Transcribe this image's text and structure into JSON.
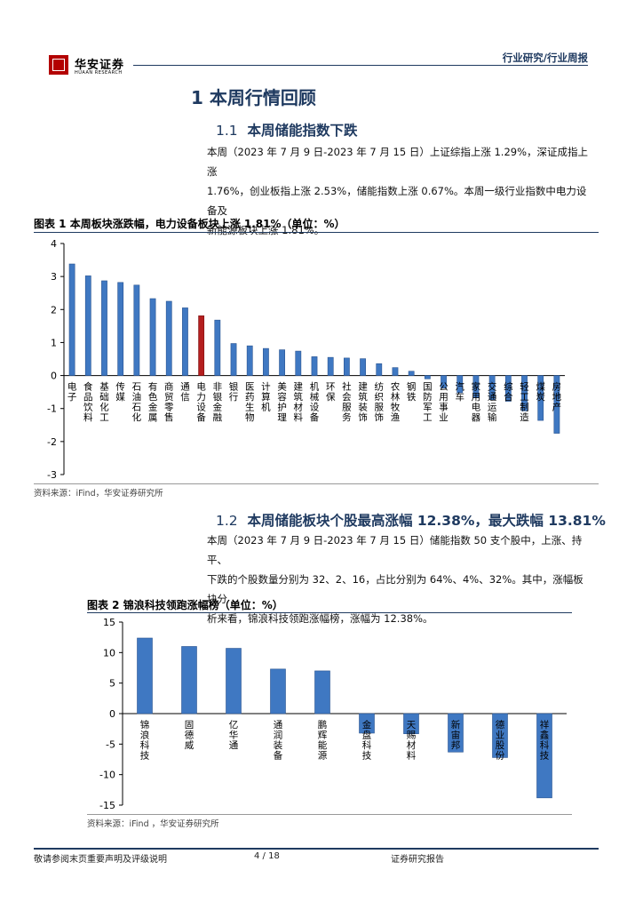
{
  "header": {
    "brand_cn": "华安证券",
    "brand_en": "HUAAN RESEARCH",
    "tag": "行业研究/行业周报"
  },
  "section1": {
    "heading": "1 本周行情回顾",
    "sub1": {
      "number": "1.1",
      "title": "本周储能指数下跌",
      "lines": [
        "本周（2023 年 7 月 9 日-2023 年 7 月 15 日）上证综指上涨 1.29%，深证成指上涨",
        "1.76%，创业板指上涨 2.53%，储能指数上涨 0.67%。本周一级行业指数中电力设备及",
        "新能源板块上涨 1.81%。"
      ]
    },
    "sub2": {
      "number": "1.2",
      "title": "本周储能板块个股最高涨幅 12.38%，最大跌幅 13.81%",
      "lines": [
        "本周（2023 年 7 月 9 日-2023 年 7 月 15 日）储能指数 50 支个股中，上涨、持平、",
        "下跌的个股数量分别为 32、2、16，占比分别为 64%、4%、32%。其中，涨幅板块分",
        "析来看，锦浪科技领跑涨幅榜，涨幅为 12.38%。"
      ]
    }
  },
  "figure1": {
    "title": "图表 1 本周板块涨跌幅，电力设备板块上涨 1.81%（单位：%）",
    "source": "资料来源：iFind，华安证券研究所"
  },
  "figure2": {
    "title": "图表 2 锦浪科技领跑涨幅榜（单位：%）",
    "source": "资料来源：iFind ，华安证券研究所"
  },
  "colors": {
    "bar": "#3f78c2",
    "highlight": "#b41e1e",
    "heading": "#1f3a60"
  },
  "chart_data": [
    {
      "type": "bar",
      "title": "",
      "ylim": [
        -3,
        4
      ],
      "yticks": [
        -3,
        -2,
        -1,
        0,
        1,
        2,
        3,
        4
      ],
      "highlight_category": "电力设备",
      "categories": [
        "电子",
        "食品饮料",
        "基础化工",
        "传媒",
        "石油石化",
        "有色金属",
        "商贸零售",
        "通信",
        "电力设备",
        "非银金融",
        "银行",
        "医药生物",
        "计算机",
        "美容护理",
        "建筑材料",
        "机械设备",
        "环保",
        "社会服务",
        "建筑装饰",
        "纺织服饰",
        "农林牧渔",
        "钢铁",
        "国防军工",
        "公用事业",
        "汽车",
        "家用电器",
        "交通运输",
        "综合",
        "轻工制造",
        "煤炭",
        "房地产"
      ],
      "values": [
        3.38,
        3.02,
        2.87,
        2.82,
        2.74,
        2.33,
        2.25,
        2.05,
        1.81,
        1.68,
        0.97,
        0.9,
        0.82,
        0.78,
        0.74,
        0.57,
        0.55,
        0.53,
        0.51,
        0.36,
        0.24,
        0.13,
        -0.1,
        -0.38,
        -0.52,
        -0.67,
        -0.73,
        -0.78,
        -1.07,
        -1.36,
        -1.75
      ]
    },
    {
      "type": "bar",
      "title": "",
      "ylim": [
        -15,
        15
      ],
      "yticks": [
        -15,
        -10,
        -5,
        0,
        5,
        10,
        15
      ],
      "categories": [
        "锦浪科技",
        "固德威",
        "亿华通",
        "通润装备",
        "鹏辉能源",
        "金盘科技",
        "天赐材料",
        "新宙邦",
        "德业股份",
        "祥鑫科技"
      ],
      "values": [
        12.38,
        11.0,
        10.7,
        7.3,
        7.0,
        -3.2,
        -3.3,
        -6.3,
        -7.2,
        -13.81
      ]
    }
  ],
  "footer": {
    "left": "敬请参阅末页重要声明及评级说明",
    "page": "4 / 18",
    "right": "证券研究报告"
  }
}
